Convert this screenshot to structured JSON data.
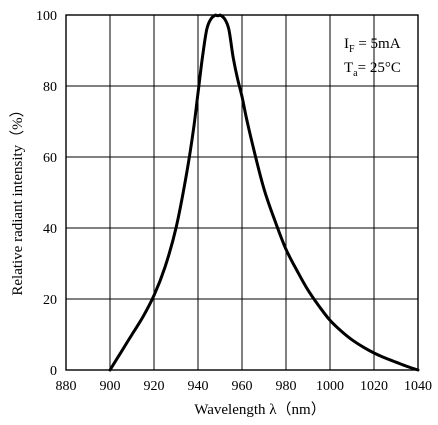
{
  "chart_data": {
    "type": "line",
    "xlabel": "Wavelength λ（nm）",
    "ylabel": "Relative radiant intensity（%）",
    "xlim": [
      880,
      1040
    ],
    "ylim": [
      0,
      100
    ],
    "x_ticks": [
      880,
      900,
      920,
      940,
      960,
      980,
      1000,
      1020,
      1040
    ],
    "y_ticks": [
      0,
      20,
      40,
      60,
      80,
      100
    ],
    "grid": true,
    "annotations": {
      "line1": {
        "main": "I",
        "sub": "F",
        "rest": " = 5mA"
      },
      "line2": {
        "main": "T",
        "sub": "a",
        "rest": "=  25°C"
      }
    },
    "series": [
      {
        "x": [
          900,
          905,
          910,
          915,
          920,
          925,
          930,
          935,
          938,
          940,
          942,
          944,
          946,
          948,
          950,
          952,
          954,
          956,
          958,
          960,
          962,
          965,
          970,
          975,
          980,
          985,
          990,
          995,
          1000,
          1005,
          1010,
          1015,
          1020,
          1025,
          1030,
          1035,
          1040
        ],
        "y": [
          0,
          5,
          10,
          15,
          21,
          29,
          40,
          56,
          68,
          78,
          88,
          96,
          99,
          100,
          100,
          99,
          96,
          88,
          82,
          77,
          71,
          63,
          51,
          42,
          34,
          28,
          22.5,
          18,
          14,
          11,
          8.5,
          6.5,
          4.8,
          3.4,
          2.2,
          1.0,
          0
        ]
      }
    ]
  }
}
